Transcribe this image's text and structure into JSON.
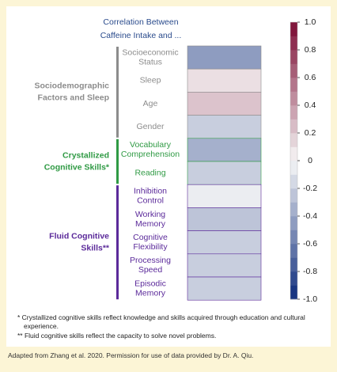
{
  "chart_data": {
    "type": "heatmap",
    "title": [
      "Correlation Between",
      "Caffeine Intake and ..."
    ],
    "groups": [
      {
        "label": [
          "Sociodemographic",
          "Factors and Sleep"
        ],
        "color": "#8c8c8c",
        "categories": [
          [
            "Socioeconomic",
            "Status"
          ],
          [
            "Sleep"
          ],
          [
            "Age"
          ],
          [
            "Gender"
          ]
        ],
        "values": [
          -0.45,
          0.1,
          0.22,
          -0.2
        ]
      },
      {
        "label": [
          "Crystallized",
          "Cognitive Skills*"
        ],
        "color": "#2f9a44",
        "categories": [
          [
            "Vocabulary",
            "Comprehension"
          ],
          [
            "Reading"
          ]
        ],
        "values": [
          -0.35,
          -0.2
        ]
      },
      {
        "label": [
          "Fluid Cognitive",
          "Skills**"
        ],
        "color": "#5b2a9a",
        "categories": [
          [
            "Inhibition",
            "Control"
          ],
          [
            "Working",
            "Memory"
          ],
          [
            "Cognitive",
            "Flexibility"
          ],
          [
            "Processing",
            "Speed"
          ],
          [
            "Episodic",
            "Memory"
          ]
        ],
        "values": [
          -0.05,
          -0.25,
          -0.2,
          -0.2,
          -0.2
        ]
      }
    ],
    "zlim": [
      -1,
      1
    ],
    "colorscale": [
      "#0d2c7c",
      "#f7f7f7",
      "#7b0b32"
    ],
    "zticks": [
      {
        "value": 1,
        "label": "1.0"
      },
      0.8,
      0.6,
      0.4,
      0.2,
      0,
      -0.2,
      -0.4,
      -0.6,
      -0.8,
      {
        "value": -1,
        "label": "-1.0"
      }
    ],
    "footnotes": [
      "* Crystallized cognitive skills reflect knowledge and skills acquired through education and cultural experience.",
      "** Fluid cognitive skills reflect the capacity to solve novel problems."
    ],
    "source": "Adapted from Zhang et al. 2020. Permission for use of data provided by Dr. A. Qiu."
  }
}
